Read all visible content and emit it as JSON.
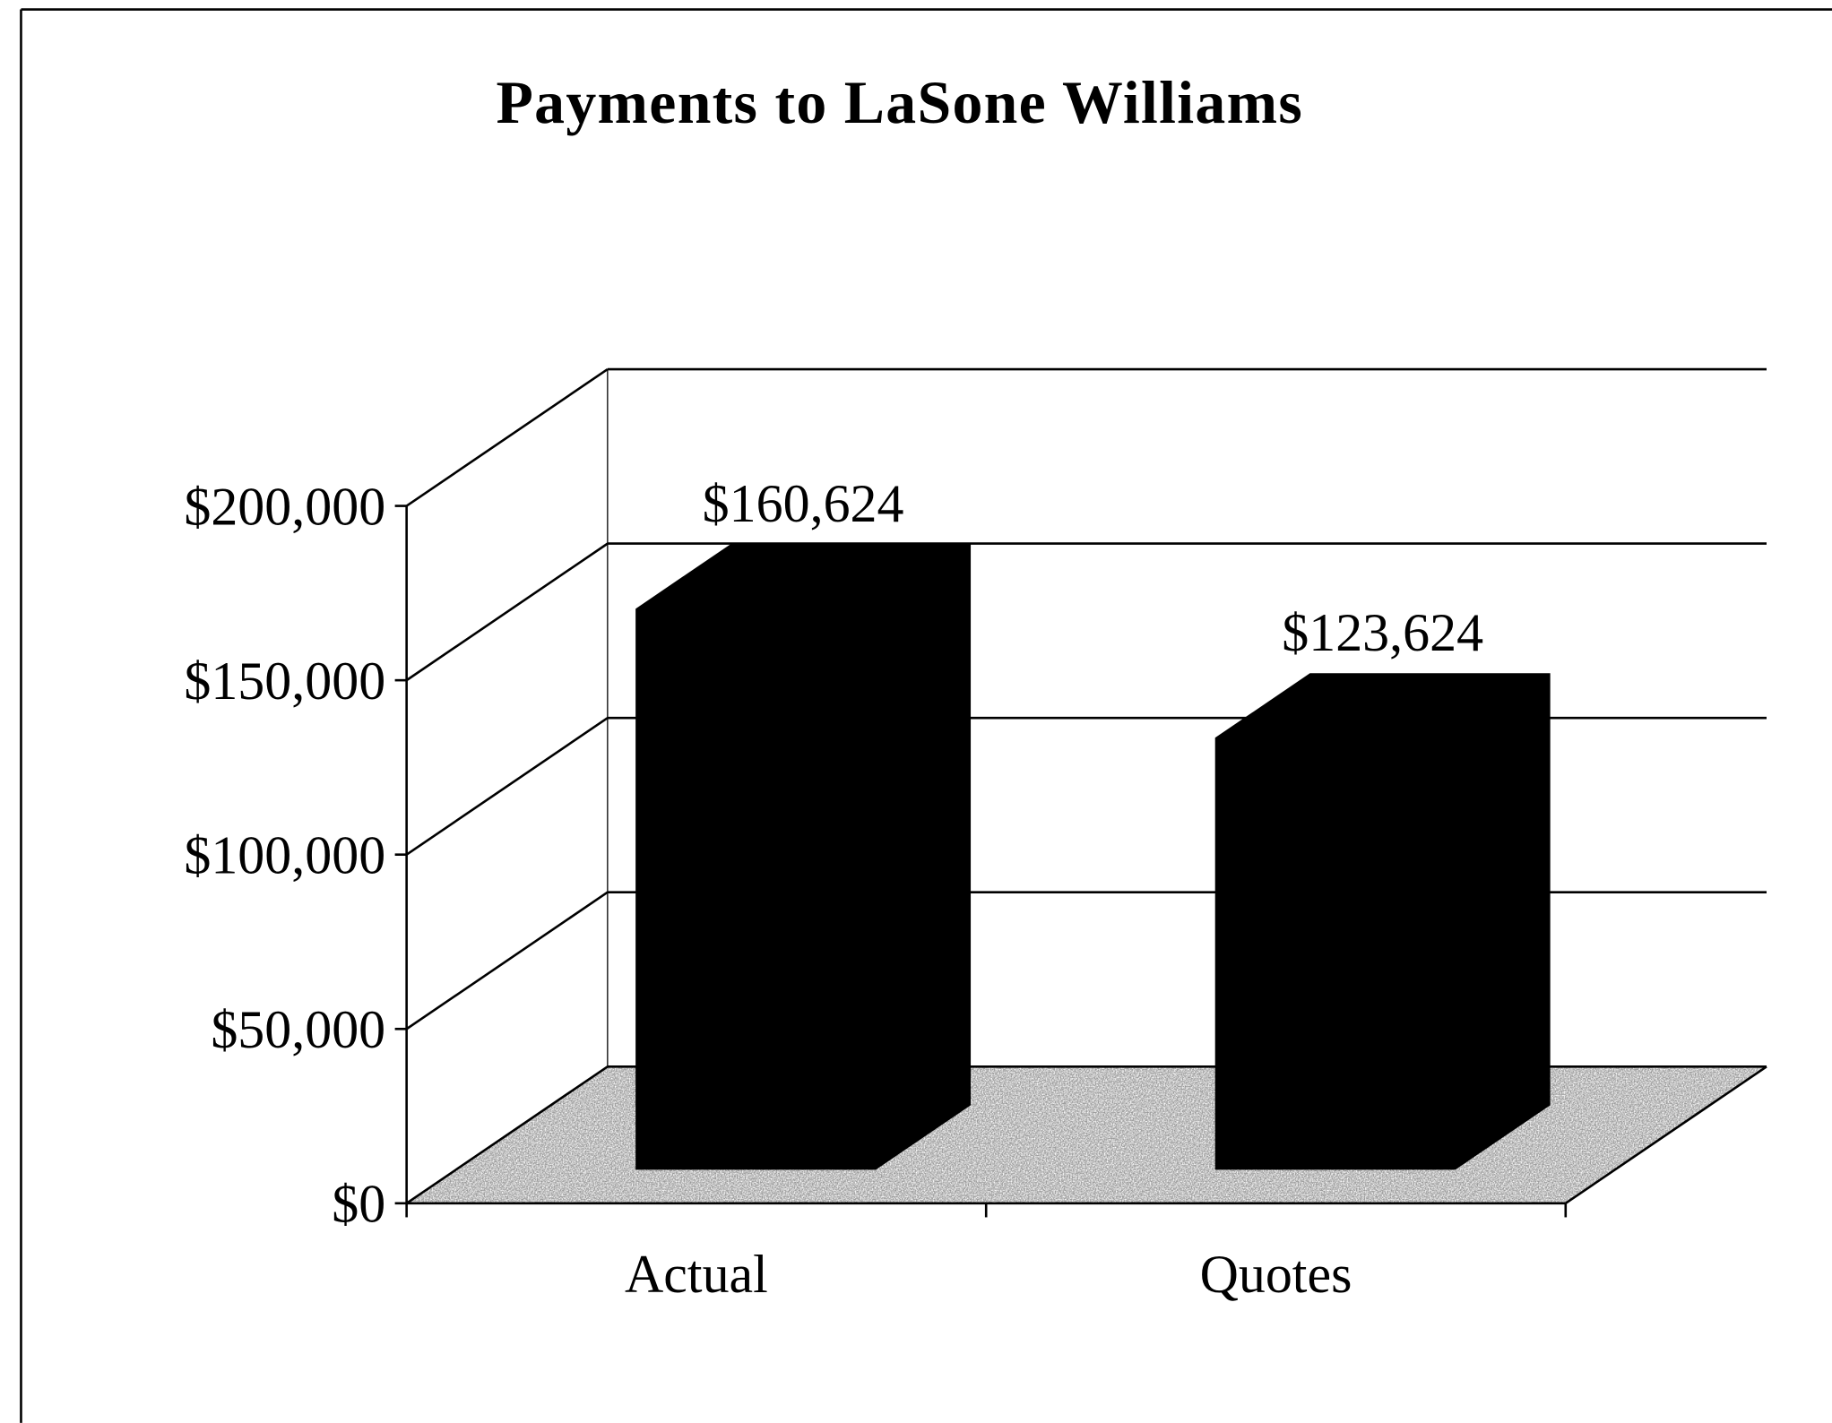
{
  "chart_data": {
    "type": "bar3d",
    "title": "Payments to LaSone Williams",
    "categories": [
      "Actual",
      "Quotes"
    ],
    "values": [
      160624,
      123624
    ],
    "value_labels": [
      "$160,624",
      "$123,624"
    ],
    "color": "#000000",
    "ylim": [
      0,
      200000
    ],
    "yticks": [
      {
        "value": 0,
        "label": "$0"
      },
      {
        "value": 50000,
        "label": "$50,000"
      },
      {
        "value": 100000,
        "label": "$100,000"
      },
      {
        "value": 150000,
        "label": "$150,000"
      },
      {
        "value": 200000,
        "label": "$200,000"
      }
    ],
    "grid": true
  }
}
